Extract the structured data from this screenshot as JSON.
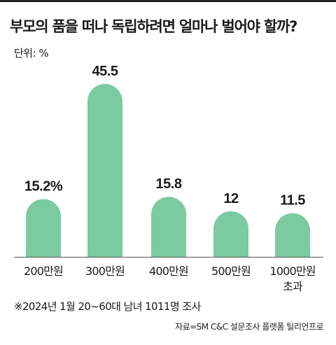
{
  "chart_data": {
    "type": "bar",
    "title": "부모의 품을 떠나 독립하려면 얼마나 벌어야 할까?",
    "unit_label": "단위: %",
    "categories": [
      "200만원",
      "300만원",
      "400만원",
      "500만원",
      "1000만원\n초과"
    ],
    "values": [
      15.2,
      45.5,
      15.8,
      12,
      11.5
    ],
    "value_labels": [
      "15.2%",
      "45.5",
      "15.8",
      "12",
      "11.5"
    ],
    "ylim": [
      0,
      45.5
    ],
    "bar_color": "#7ccaa0",
    "grid": false
  },
  "footnote": "※2024년 1월 20~60대 남녀 1011명 조사",
  "source": "자료=SM C&C 설문조사 플랫폼 틸리언프로"
}
